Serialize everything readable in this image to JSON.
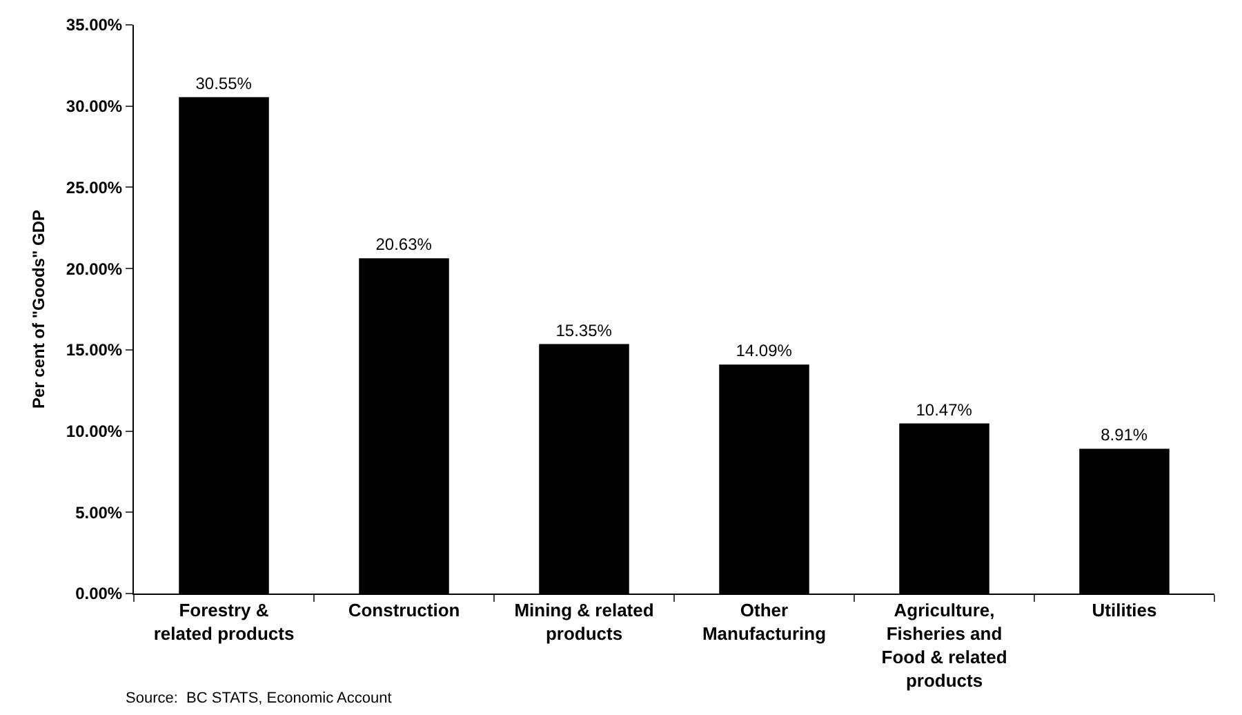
{
  "chart_data": {
    "type": "bar",
    "ylabel": "Per cent of \"Goods\" GDP",
    "categories": [
      "Forestry & related products",
      "Construction",
      "Mining & related products",
      "Other Manufacturing",
      "Agriculture, Fisheries and Food & related products",
      "Utilities"
    ],
    "values": [
      30.55,
      20.63,
      15.35,
      14.09,
      10.47,
      8.91
    ],
    "value_labels": [
      "30.55%",
      "20.63%",
      "15.35%",
      "14.09%",
      "10.47%",
      "8.91%"
    ],
    "color": "#000000",
    "ylim": [
      0,
      35
    ],
    "yticks": [
      {
        "value": 0,
        "label": "0.00%"
      },
      {
        "value": 5,
        "label": "5.00%"
      },
      {
        "value": 10,
        "label": "10.00%"
      },
      {
        "value": 15,
        "label": "15.00%"
      },
      {
        "value": 20,
        "label": "20.00%"
      },
      {
        "value": 25,
        "label": "25.00%"
      },
      {
        "value": 30,
        "label": "30.00%"
      },
      {
        "value": 35,
        "label": "35.00%"
      }
    ],
    "grid": false,
    "annotations": [
      "Source:  BC STATS, Economic Account"
    ]
  }
}
